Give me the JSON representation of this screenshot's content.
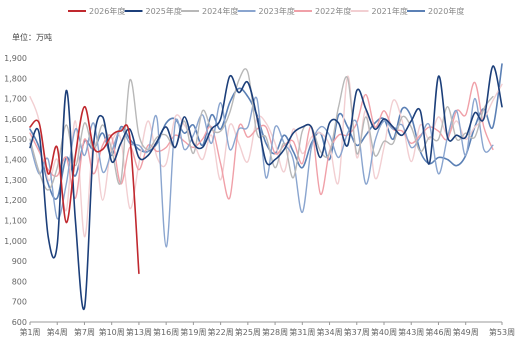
{
  "chart_data": {
    "type": "line",
    "unit_label": "单位：万吨",
    "ylim": [
      600,
      1900
    ],
    "yticks": [
      600,
      700,
      800,
      900,
      1000,
      1100,
      1200,
      1300,
      1400,
      1500,
      1600,
      1700,
      1800,
      1900
    ],
    "ytick_labels": [
      "600",
      "700",
      "800",
      "900",
      "1,000",
      "1,100",
      "1,200",
      "1,300",
      "1,400",
      "1,500",
      "1,600",
      "1,700",
      "1,800",
      "1,900"
    ],
    "xlim": [
      1,
      53
    ],
    "xticks": [
      1,
      4,
      7,
      10,
      13,
      16,
      19,
      22,
      25,
      28,
      31,
      34,
      37,
      40,
      43,
      46,
      49,
      53
    ],
    "xtick_labels": [
      "第1周",
      "第4周",
      "第7周",
      "第10周",
      "第13周",
      "第16周",
      "第19周",
      "第22周",
      "第25周",
      "第28周",
      "第31周",
      "第34周",
      "第37周",
      "第40周",
      "第43周",
      "第46周",
      "第49周",
      "第53周"
    ],
    "grid": false,
    "legend_position": "top",
    "series": [
      {
        "name": "2026年度",
        "color": "#c0282e",
        "width": 1.6,
        "x": [
          1,
          2,
          3,
          4,
          5,
          6,
          7,
          8,
          9,
          10,
          11,
          12,
          13
        ],
        "y": [
          1560,
          1580,
          1330,
          1460,
          1090,
          1420,
          1660,
          1460,
          1450,
          1520,
          1540,
          1510,
          840
        ]
      },
      {
        "name": "2025年度",
        "color": "#1c3f7a",
        "width": 1.6,
        "x": [
          1,
          2,
          3,
          4,
          5,
          6,
          7,
          8,
          9,
          10,
          11,
          12,
          13,
          14,
          15,
          16,
          17,
          18,
          19,
          20,
          21,
          22,
          23,
          24,
          25,
          26,
          27,
          28,
          29,
          30,
          31,
          32,
          33,
          34,
          35,
          36,
          37,
          38,
          39,
          40,
          41,
          42,
          43,
          44,
          45,
          46,
          47,
          48,
          49,
          50,
          51,
          52,
          53
        ],
        "y": [
          1460,
          1530,
          1020,
          980,
          1740,
          1100,
          670,
          1470,
          1610,
          1390,
          1480,
          1550,
          1410,
          1420,
          1490,
          1560,
          1460,
          1610,
          1480,
          1460,
          1550,
          1600,
          1810,
          1730,
          1780,
          1610,
          1390,
          1400,
          1450,
          1530,
          1560,
          1560,
          1410,
          1580,
          1580,
          1470,
          1740,
          1650,
          1550,
          1600,
          1560,
          1520,
          1590,
          1640,
          1380,
          1810,
          1510,
          1520,
          1510,
          1630,
          1600,
          1860,
          1660
        ]
      },
      {
        "name": "2024年度",
        "color": "#b8b8b8",
        "width": 1.4,
        "x": [
          1,
          2,
          3,
          4,
          5,
          6,
          7,
          8,
          9,
          10,
          11,
          12,
          13,
          14,
          15,
          16,
          17,
          18,
          19,
          20,
          21,
          22,
          23,
          24,
          25,
          26,
          27,
          28,
          29,
          30,
          31,
          32,
          33,
          34,
          35,
          36,
          37,
          38,
          39,
          40,
          41,
          42,
          43,
          44,
          45,
          46,
          47,
          48,
          49,
          50,
          51,
          52
        ],
        "y": [
          1500,
          1340,
          1250,
          1360,
          1570,
          1370,
          1580,
          1450,
          1570,
          1450,
          1290,
          1790,
          1520,
          1450,
          1510,
          1520,
          1460,
          1590,
          1430,
          1640,
          1550,
          1540,
          1630,
          1790,
          1830,
          1530,
          1510,
          1360,
          1480,
          1310,
          1540,
          1560,
          1440,
          1430,
          1660,
          1800,
          1430,
          1610,
          1420,
          1490,
          1480,
          1610,
          1560,
          1440,
          1510,
          1500,
          1660,
          1500,
          1530,
          1510,
          1650,
          1710
        ]
      },
      {
        "name": "2023年度",
        "color": "#8aa5cf",
        "width": 1.4,
        "x": [
          1,
          2,
          3,
          4,
          5,
          6,
          7,
          8,
          9,
          10,
          11,
          12,
          13,
          14,
          15,
          16,
          17,
          18,
          19,
          20,
          21,
          22,
          23,
          24,
          25,
          26,
          27,
          28,
          29,
          30,
          31,
          32,
          33,
          34,
          35,
          36,
          37,
          38,
          39,
          40,
          41,
          42,
          43,
          44,
          45,
          46,
          47,
          48,
          49,
          50,
          51,
          52
        ],
        "y": [
          1480,
          1330,
          1400,
          1110,
          1280,
          1550,
          1420,
          1580,
          1340,
          1440,
          1550,
          1480,
          1470,
          1440,
          1600,
          970,
          1580,
          1450,
          1520,
          1620,
          1480,
          1680,
          1450,
          1550,
          1560,
          1700,
          1310,
          1560,
          1480,
          1400,
          1140,
          1460,
          1560,
          1520,
          1410,
          1530,
          1580,
          1280,
          1490,
          1590,
          1550,
          1570,
          1460,
          1510,
          1570,
          1330,
          1510,
          1640,
          1420,
          1700,
          1450,
          1470
        ]
      },
      {
        "name": "2022年度",
        "color": "#f0a0a8",
        "width": 1.4,
        "x": [
          1,
          2,
          3,
          4,
          5,
          6,
          7,
          8,
          9,
          10,
          11,
          12,
          13,
          14,
          15,
          16,
          17,
          18,
          19,
          20,
          21,
          22,
          23,
          24,
          25,
          26,
          27,
          28,
          29,
          30,
          31,
          32,
          33,
          34,
          35,
          36,
          37,
          38,
          39,
          40,
          41,
          42,
          43,
          44,
          45,
          46,
          47,
          48,
          49,
          50,
          51,
          52
        ],
        "y": [
          1530,
          1440,
          1350,
          1320,
          1410,
          1210,
          1500,
          1330,
          1470,
          1510,
          1280,
          1460,
          1350,
          1470,
          1440,
          1460,
          1520,
          1490,
          1460,
          1500,
          1560,
          1380,
          1210,
          1560,
          1510,
          1550,
          1560,
          1430,
          1470,
          1490,
          1380,
          1560,
          1230,
          1440,
          1520,
          1520,
          1580,
          1720,
          1560,
          1640,
          1550,
          1540,
          1480,
          1520,
          1560,
          1540,
          1500,
          1640,
          1620,
          1780,
          1560,
          1450
        ]
      },
      {
        "name": "2021年度",
        "color": "#f2cfd2",
        "width": 1.4,
        "x": [
          1,
          2,
          3,
          4,
          5,
          6,
          7,
          8,
          9,
          10,
          11,
          12,
          13,
          14,
          15,
          16,
          17,
          18,
          19,
          20,
          21,
          22,
          23,
          24,
          25,
          26,
          27,
          28,
          29,
          30,
          31,
          32,
          33,
          34,
          35,
          36,
          37,
          38,
          39,
          40,
          41,
          42,
          43,
          44,
          45,
          46,
          47,
          48,
          49,
          50,
          51,
          52,
          53
        ],
        "y": [
          1710,
          1590,
          1300,
          1400,
          1150,
          1590,
          1020,
          1490,
          1200,
          1480,
          1500,
          1160,
          1380,
          1590,
          1410,
          1380,
          1610,
          1570,
          1490,
          1400,
          1520,
          1300,
          1570,
          1480,
          1390,
          1600,
          1580,
          1480,
          1340,
          1550,
          1430,
          1510,
          1530,
          1470,
          1290,
          1810,
          1410,
          1640,
          1310,
          1460,
          1690,
          1590,
          1390,
          1570,
          1500,
          1610,
          1520,
          1590,
          1500,
          1560,
          1600,
          1690,
          1770
        ]
      },
      {
        "name": "2020年度",
        "color": "#5b80b5",
        "width": 1.6,
        "x": [
          1,
          2,
          3,
          4,
          5,
          6,
          7,
          8,
          9,
          10,
          11,
          12,
          13,
          14,
          15,
          16,
          17,
          18,
          19,
          20,
          21,
          22,
          23,
          24,
          25,
          26,
          27,
          28,
          29,
          30,
          31,
          32,
          33,
          34,
          35,
          36,
          37,
          38,
          39,
          40,
          41,
          42,
          43,
          44,
          45,
          46,
          47,
          48,
          49,
          50,
          51,
          52,
          53
        ],
        "y": [
          1550,
          1460,
          1280,
          1210,
          1410,
          1320,
          1490,
          1450,
          1530,
          1420,
          1560,
          1500,
          1450,
          1440,
          1480,
          1580,
          1600,
          1530,
          1570,
          1470,
          1620,
          1550,
          1680,
          1750,
          1710,
          1620,
          1480,
          1430,
          1520,
          1440,
          1360,
          1480,
          1530,
          1400,
          1620,
          1560,
          1470,
          1520,
          1580,
          1600,
          1500,
          1650,
          1610,
          1440,
          1380,
          1410,
          1400,
          1370,
          1420,
          1560,
          1650,
          1560,
          1870
        ]
      }
    ]
  }
}
